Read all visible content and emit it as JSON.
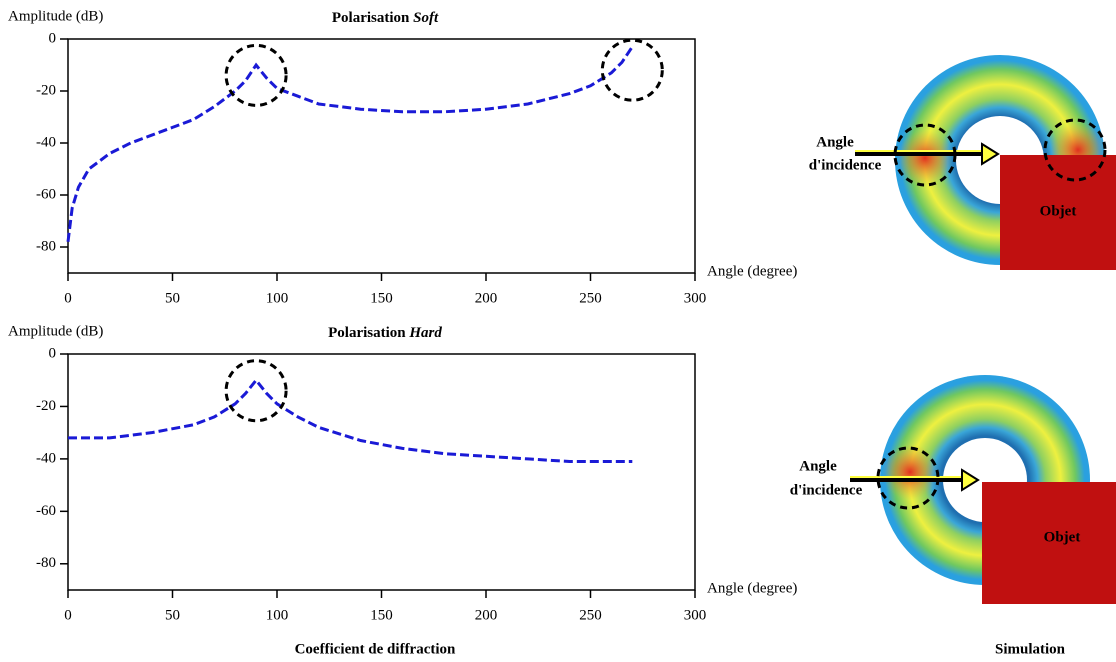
{
  "chart_data": [
    {
      "type": "line",
      "title": [
        "Polarisation",
        "Soft"
      ],
      "ylabel": "Amplitude (dB)",
      "xlabel": "Angle (degree)",
      "xlim": [
        0,
        300
      ],
      "xticks": [
        0,
        50,
        100,
        150,
        200,
        250,
        300
      ],
      "ylim": [
        -90,
        0
      ],
      "yticks": [
        0,
        -20,
        -40,
        -60,
        -80
      ],
      "x": [
        0,
        2,
        5,
        10,
        20,
        30,
        40,
        50,
        60,
        70,
        80,
        85,
        90,
        95,
        100,
        110,
        120,
        140,
        160,
        170,
        180,
        200,
        220,
        240,
        250,
        260,
        265,
        270
      ],
      "series": [
        {
          "color": "#1a1ad6",
          "values": [
            -78,
            -65,
            -57,
            -50,
            -44,
            -40,
            -37,
            -34,
            -31,
            -26,
            -20,
            -16,
            -10,
            -15,
            -19,
            -22,
            -25,
            -27,
            -28,
            -28,
            -28,
            -27,
            -25,
            -21,
            -18,
            -13,
            -9,
            -3
          ]
        }
      ]
    },
    {
      "type": "line",
      "title": [
        "Polarisation",
        "Hard"
      ],
      "ylabel": "Amplitude (dB)",
      "xlabel": "Angle (degree)",
      "xlim": [
        0,
        300
      ],
      "xticks": [
        0,
        50,
        100,
        150,
        200,
        250,
        300
      ],
      "ylim": [
        -90,
        0
      ],
      "yticks": [
        0,
        -20,
        -40,
        -60,
        -80
      ],
      "x": [
        0,
        20,
        40,
        60,
        70,
        80,
        85,
        90,
        95,
        100,
        110,
        120,
        140,
        160,
        180,
        200,
        220,
        240,
        260,
        270
      ],
      "series": [
        {
          "color": "#1a1ad6",
          "values": [
            -32,
            -32,
            -30,
            -27,
            -24,
            -19,
            -15,
            -10,
            -15,
            -19,
            -24,
            -28,
            -33,
            -36,
            -38,
            -39,
            -40,
            -41,
            -41,
            -41
          ]
        }
      ]
    }
  ],
  "captions": {
    "left": "Coefficient de diffraction",
    "right": "Simulation"
  },
  "simulation": [
    {
      "label": [
        "Angle",
        "d'incidence"
      ],
      "object": "Objet"
    },
    {
      "label": [
        "Angle",
        "d'incidence"
      ],
      "object": "Objet"
    }
  ]
}
